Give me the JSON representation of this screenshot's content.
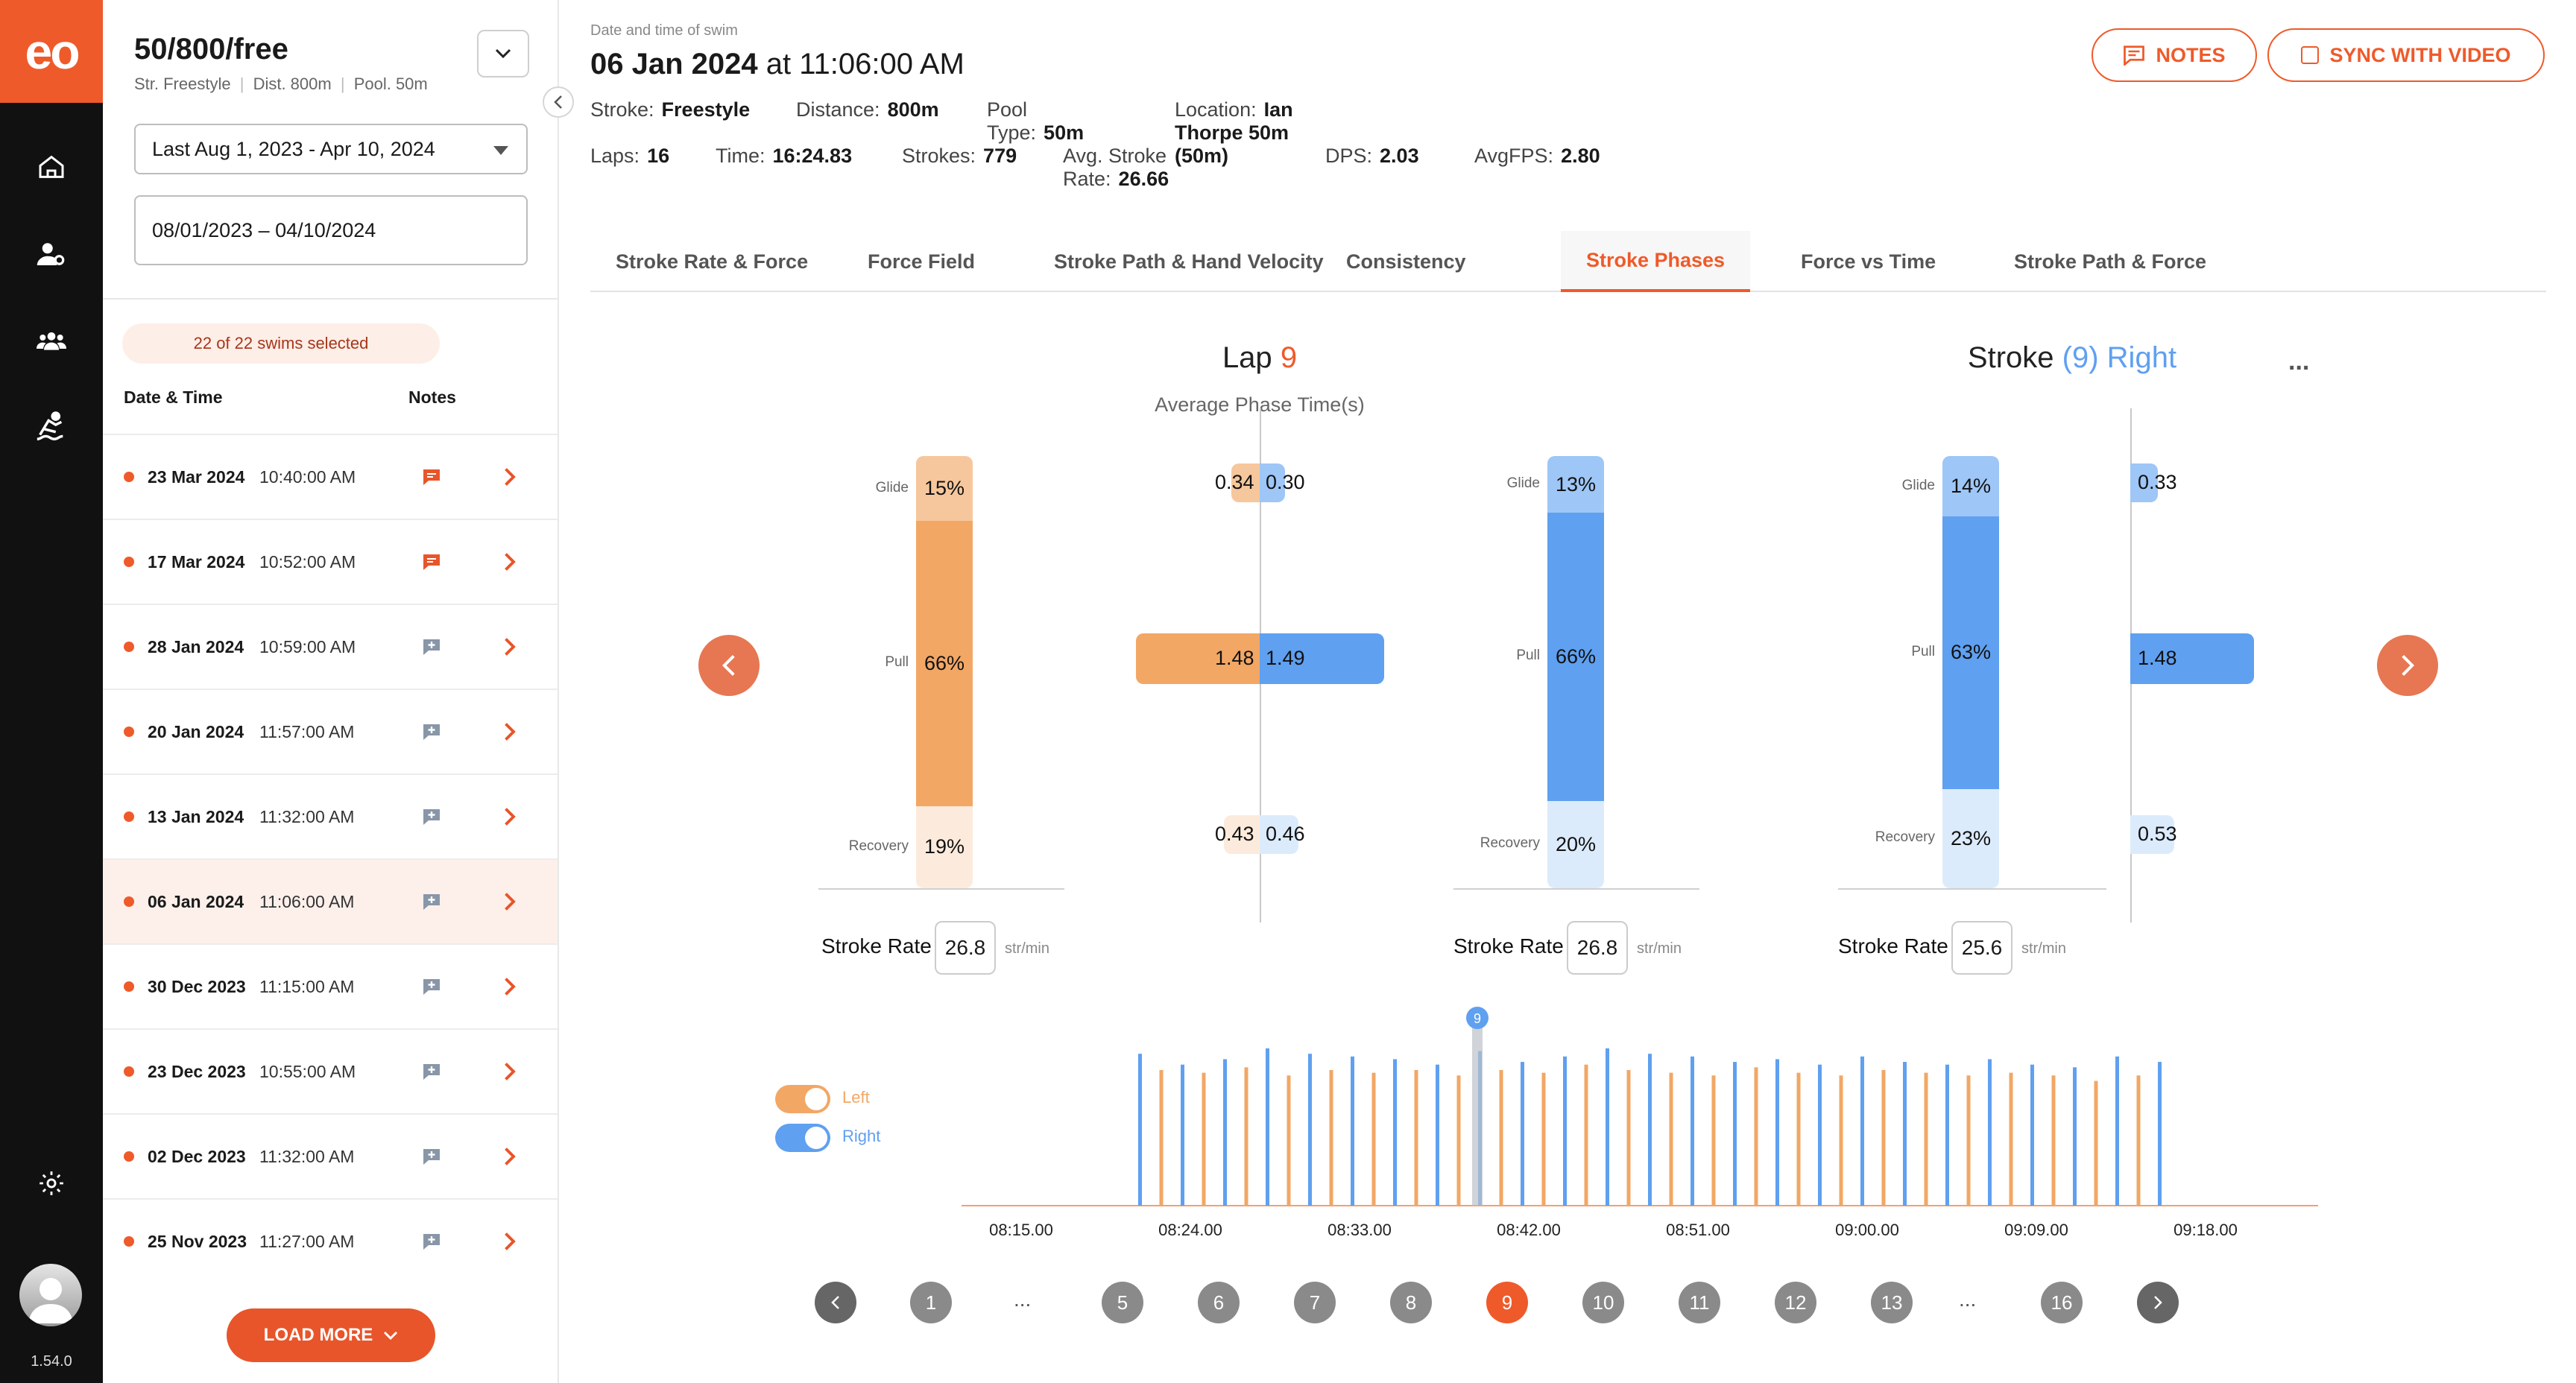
{
  "app": {
    "logo": "eo",
    "version": "1.54.0"
  },
  "colors": {
    "accent": "#ef5a2a",
    "left": "#f2a765",
    "right": "#5fa0f0"
  },
  "nav_icons": [
    "home-icon",
    "coach-user-icon",
    "team-icon",
    "swimmer-icon",
    "settings-icon"
  ],
  "sidebar": {
    "title": "50/800/free",
    "subtitle_stroke": "Str. Freestyle",
    "subtitle_distance": "Dist. 800m",
    "subtitle_pool": "Pool. 50m",
    "range_select": "Last  Aug 1, 2023 - Apr 10, 2024",
    "date_field": "08/01/2023 – 04/10/2024",
    "selected_count": "22 of 22 swims selected",
    "col_date": "Date & Time",
    "col_notes": "Notes",
    "rows": [
      {
        "date": "23 Mar 2024",
        "time": "10:40:00 AM",
        "note": "note-filled-icon"
      },
      {
        "date": "17 Mar 2024",
        "time": "10:52:00 AM",
        "note": "note-filled-icon"
      },
      {
        "date": "28 Jan 2024",
        "time": "10:59:00 AM",
        "note": "add-note-icon"
      },
      {
        "date": "20 Jan 2024",
        "time": "11:57:00 AM",
        "note": "add-note-icon"
      },
      {
        "date": "13 Jan 2024",
        "time": "11:32:00 AM",
        "note": "add-note-icon"
      },
      {
        "date": "06 Jan 2024",
        "time": "11:06:00 AM",
        "note": "add-note-icon"
      },
      {
        "date": "30 Dec 2023",
        "time": "11:15:00 AM",
        "note": "add-note-icon"
      },
      {
        "date": "23 Dec 2023",
        "time": "10:55:00 AM",
        "note": "add-note-icon"
      },
      {
        "date": "02 Dec 2023",
        "time": "11:32:00 AM",
        "note": "add-note-icon"
      },
      {
        "date": "25 Nov 2023",
        "time": "11:27:00 AM",
        "note": "add-note-icon"
      }
    ],
    "load_more": "LOAD MORE"
  },
  "header": {
    "caption": "Date and time of swim",
    "date": "06 Jan 2024",
    "at_time": "at 11:06:00 AM",
    "notes_button": "NOTES",
    "sync_button": "SYNC WITH VIDEO",
    "stats1": [
      {
        "k": "Stroke:",
        "v": "Freestyle"
      },
      {
        "k": "Distance:",
        "v": "800m"
      },
      {
        "k": "Pool Type:",
        "v": "50m"
      },
      {
        "k": "Location:",
        "v": "Ian Thorpe 50m (50m)"
      }
    ],
    "stats2": [
      {
        "k": "Laps:",
        "v": "16"
      },
      {
        "k": "Time:",
        "v": "16:24.83"
      },
      {
        "k": "Strokes:",
        "v": "779"
      },
      {
        "k": "Avg. Stroke Rate:",
        "v": "26.66"
      },
      {
        "k": "DPS:",
        "v": "2.03"
      },
      {
        "k": "AvgFPS:",
        "v": "2.80"
      }
    ]
  },
  "tabs": [
    "Stroke Rate & Force",
    "Force Field",
    "Stroke Path & Hand Velocity",
    "Consistency",
    "Stroke Phases",
    "Force vs Time",
    "Stroke Path & Force"
  ],
  "active_tab": "Stroke Phases",
  "phases": {
    "lap_label": "Lap",
    "lap_num": "9",
    "avg_caption": "Average Phase Time(s)",
    "stroke_label": "Stroke",
    "stroke_num": "(9)",
    "stroke_side": "Right",
    "more": "...",
    "phase_names": [
      "Glide",
      "Pull",
      "Recovery"
    ],
    "lap_left_pct": [
      "15%",
      "66%",
      "19%"
    ],
    "lap_left_frac": [
      0.15,
      0.66,
      0.19
    ],
    "avg_left": [
      "0.34",
      "1.48",
      "0.43"
    ],
    "avg_right": [
      "0.30",
      "1.49",
      "0.46"
    ],
    "lap_right_pct": [
      "13%",
      "66%",
      "20%"
    ],
    "lap_right_frac": [
      0.13,
      0.66,
      0.2
    ],
    "stroke_pct": [
      "14%",
      "63%",
      "23%"
    ],
    "stroke_frac": [
      0.14,
      0.63,
      0.23
    ],
    "stroke_times": [
      "0.33",
      "1.48",
      "0.53"
    ],
    "stroke_rate_label": "Stroke Rate",
    "stroke_rate_unit": "str/min",
    "stroke_rates": [
      "26.8",
      "26.8",
      "25.6"
    ]
  },
  "timeline": {
    "legend_left": "Left",
    "legend_right": "Right",
    "marker": "9",
    "ticks": [
      "08:15.00",
      "08:24.00",
      "08:33.00",
      "08:42.00",
      "08:51.00",
      "09:00.00",
      "09:09.00",
      "09:18.00"
    ]
  },
  "pager": [
    "1",
    "...",
    "5",
    "6",
    "7",
    "8",
    "9",
    "10",
    "11",
    "12",
    "13",
    "...",
    "16"
  ],
  "pager_active": "9"
}
